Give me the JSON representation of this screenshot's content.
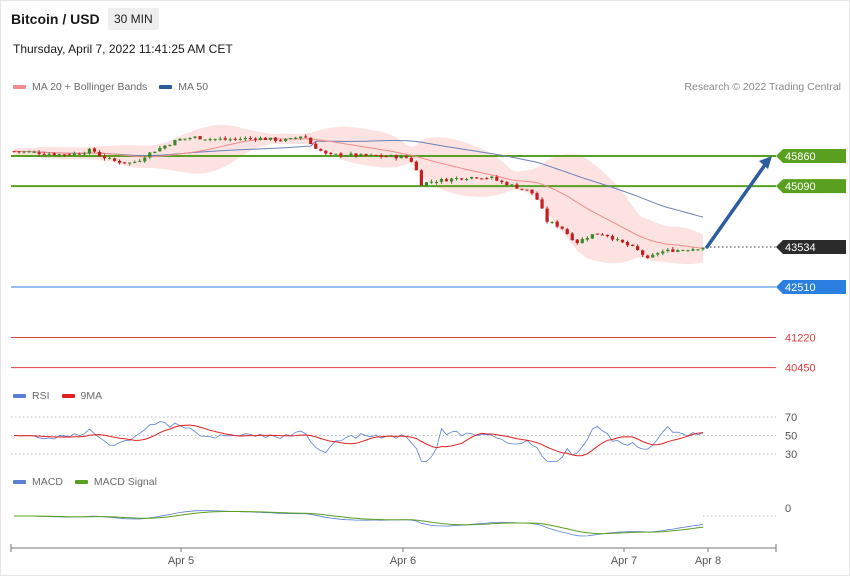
{
  "header": {
    "title": "Bitcoin / USD",
    "timeframe": "30 MIN",
    "datetime": "Thursday, April 7, 2022 11:41:25 AM CET",
    "credit": "Research © 2022 Trading Central"
  },
  "legends": {
    "main": [
      {
        "label": "MA 20 + Bollinger Bands",
        "color": "#f28b8b"
      },
      {
        "label": "MA 50",
        "color": "#2a5a9a"
      }
    ],
    "rsi": [
      {
        "label": "RSI",
        "color": "#5b7fd6"
      },
      {
        "label": "9MA",
        "color": "#e02020"
      }
    ],
    "macd": [
      {
        "label": "MACD",
        "color": "#5b7fd6"
      },
      {
        "label": "MACD Signal",
        "color": "#5aa020"
      }
    ]
  },
  "colors": {
    "up": "#3a8a28",
    "down": "#c21e1e",
    "band": "#fde2e2",
    "ma20": "#f28b8b",
    "ma50": "#6a82b8",
    "resistance": "#5aa020",
    "support": "#2a7fe0",
    "deep_support": "#e04040",
    "arrow": "#2e5d9e",
    "price_tag": "#2b2b2b"
  },
  "chart_data": [
    {
      "type": "candlestick",
      "x_ticks": [
        "Apr 5",
        "Apr 6",
        "Apr 7",
        "Apr 8"
      ],
      "last_price": 43534,
      "levels": [
        {
          "value": 45860,
          "kind": "resistance",
          "label": "45860"
        },
        {
          "value": 45090,
          "kind": "resistance",
          "label": "45090"
        },
        {
          "value": 43534,
          "kind": "last",
          "label": "43534"
        },
        {
          "value": 42510,
          "kind": "support",
          "label": "42510"
        },
        {
          "value": 41220,
          "kind": "deep_support",
          "label": "41220"
        },
        {
          "value": 40450,
          "kind": "deep_support",
          "label": "40450"
        }
      ],
      "forecast_arrow": {
        "from": 43534,
        "to": 45860
      },
      "series": [
        {
          "name": "MA 20 + Bollinger Bands"
        },
        {
          "name": "MA 50"
        }
      ],
      "price_path": [
        [
          0,
          45980
        ],
        [
          0.02,
          45960
        ],
        [
          0.04,
          45930
        ],
        [
          0.06,
          45900
        ],
        [
          0.08,
          45920
        ],
        [
          0.1,
          46020
        ],
        [
          0.11,
          45860
        ],
        [
          0.13,
          45720
        ],
        [
          0.15,
          45680
        ],
        [
          0.16,
          45760
        ],
        [
          0.17,
          45900
        ],
        [
          0.19,
          46100
        ],
        [
          0.21,
          46280
        ],
        [
          0.23,
          46340
        ],
        [
          0.25,
          46300
        ],
        [
          0.27,
          46280
        ],
        [
          0.29,
          46300
        ],
        [
          0.31,
          46320
        ],
        [
          0.33,
          46280
        ],
        [
          0.35,
          46260
        ],
        [
          0.37,
          46400
        ],
        [
          0.38,
          46150
        ],
        [
          0.4,
          45880
        ],
        [
          0.42,
          45900
        ],
        [
          0.44,
          45870
        ],
        [
          0.46,
          45860
        ],
        [
          0.48,
          45850
        ],
        [
          0.5,
          45830
        ],
        [
          0.51,
          45700
        ],
        [
          0.52,
          45150
        ],
        [
          0.53,
          45200
        ],
        [
          0.55,
          45250
        ],
        [
          0.57,
          45300
        ],
        [
          0.59,
          45330
        ],
        [
          0.61,
          45300
        ],
        [
          0.62,
          45200
        ],
        [
          0.63,
          45150
        ],
        [
          0.65,
          45010
        ],
        [
          0.66,
          44950
        ],
        [
          0.67,
          44700
        ],
        [
          0.68,
          44200
        ],
        [
          0.69,
          44120
        ],
        [
          0.7,
          44020
        ],
        [
          0.71,
          43800
        ],
        [
          0.72,
          43650
        ],
        [
          0.73,
          43780
        ],
        [
          0.74,
          43860
        ],
        [
          0.75,
          43880
        ],
        [
          0.76,
          43820
        ],
        [
          0.77,
          43700
        ],
        [
          0.79,
          43520
        ],
        [
          0.8,
          43400
        ],
        [
          0.81,
          43200
        ],
        [
          0.82,
          43380
        ],
        [
          0.83,
          43420
        ],
        [
          0.84,
          43450
        ],
        [
          0.85,
          43460
        ],
        [
          0.86,
          43480
        ],
        [
          0.87,
          43500
        ],
        [
          0.88,
          43534
        ]
      ],
      "rsi": {
        "levels": [
          70,
          50,
          30
        ],
        "last": 50
      },
      "macd": {
        "levels": [
          0
        ]
      }
    }
  ]
}
